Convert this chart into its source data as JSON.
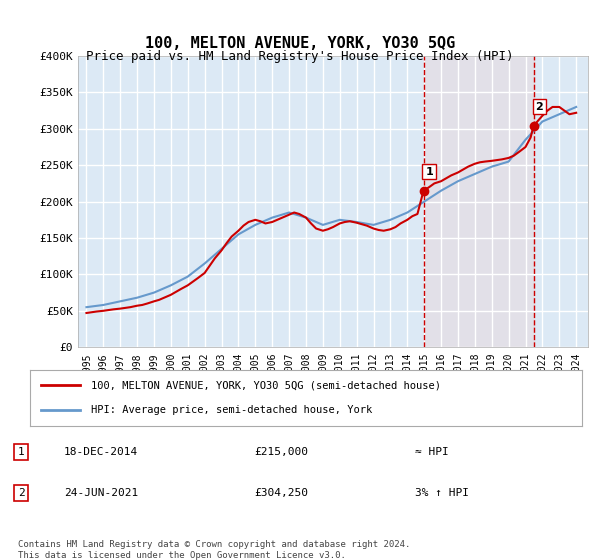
{
  "title": "100, MELTON AVENUE, YORK, YO30 5QG",
  "subtitle": "Price paid vs. HM Land Registry's House Price Index (HPI)",
  "footnote": "Contains HM Land Registry data © Crown copyright and database right 2024.\nThis data is licensed under the Open Government Licence v3.0.",
  "legend_line1": "100, MELTON AVENUE, YORK, YO30 5QG (semi-detached house)",
  "legend_line2": "HPI: Average price, semi-detached house, York",
  "sale1_label": "1",
  "sale1_date": "18-DEC-2014",
  "sale1_price": "£215,000",
  "sale1_hpi": "≈ HPI",
  "sale2_label": "2",
  "sale2_date": "24-JUN-2021",
  "sale2_price": "£304,250",
  "sale2_hpi": "3% ↑ HPI",
  "ylim": [
    0,
    400000
  ],
  "yticks": [
    0,
    50000,
    100000,
    150000,
    200000,
    250000,
    300000,
    350000,
    400000
  ],
  "ytick_labels": [
    "£0",
    "£50K",
    "£100K",
    "£150K",
    "£200K",
    "£250K",
    "£300K",
    "£350K",
    "£400K"
  ],
  "background_color": "#ffffff",
  "plot_bg_color": "#dce9f5",
  "grid_color": "#ffffff",
  "red_color": "#cc0000",
  "blue_color": "#6699cc",
  "sale1_x": 2014.96,
  "sale1_y": 215000,
  "sale2_x": 2021.48,
  "sale2_y": 304250,
  "hpi_years": [
    1995,
    1996,
    1997,
    1998,
    1999,
    2000,
    2001,
    2002,
    2003,
    2004,
    2005,
    2006,
    2007,
    2008,
    2009,
    2010,
    2011,
    2012,
    2013,
    2014,
    2015,
    2016,
    2017,
    2018,
    2019,
    2020,
    2021,
    2022,
    2023,
    2024
  ],
  "hpi_values": [
    55000,
    58000,
    63000,
    68000,
    75000,
    85000,
    97000,
    115000,
    135000,
    155000,
    168000,
    178000,
    185000,
    178000,
    168000,
    175000,
    172000,
    168000,
    175000,
    185000,
    200000,
    215000,
    228000,
    238000,
    248000,
    255000,
    285000,
    310000,
    320000,
    330000
  ],
  "price_years": [
    1995.0,
    1995.3,
    1995.6,
    1996.0,
    1996.3,
    1996.6,
    1997.0,
    1997.3,
    1997.6,
    1998.0,
    1998.3,
    1998.6,
    1999.0,
    1999.3,
    1999.6,
    2000.0,
    2000.3,
    2000.6,
    2001.0,
    2001.3,
    2001.6,
    2002.0,
    2002.3,
    2002.6,
    2003.0,
    2003.3,
    2003.6,
    2004.0,
    2004.3,
    2004.6,
    2005.0,
    2005.3,
    2005.6,
    2006.0,
    2006.3,
    2006.6,
    2007.0,
    2007.3,
    2007.6,
    2008.0,
    2008.3,
    2008.6,
    2009.0,
    2009.3,
    2009.6,
    2010.0,
    2010.3,
    2010.6,
    2011.0,
    2011.3,
    2011.6,
    2012.0,
    2012.3,
    2012.6,
    2013.0,
    2013.3,
    2013.6,
    2014.0,
    2014.3,
    2014.6,
    2014.96,
    2015.3,
    2015.6,
    2016.0,
    2016.3,
    2016.6,
    2017.0,
    2017.3,
    2017.6,
    2018.0,
    2018.3,
    2018.6,
    2019.0,
    2019.3,
    2019.6,
    2020.0,
    2020.3,
    2020.6,
    2021.0,
    2021.3,
    2021.48,
    2021.7,
    2022.0,
    2022.3,
    2022.6,
    2023.0,
    2023.3,
    2023.6,
    2024.0
  ],
  "price_values": [
    47000,
    48000,
    49000,
    50000,
    51000,
    52000,
    53000,
    54000,
    55000,
    57000,
    58000,
    60000,
    63000,
    65000,
    68000,
    72000,
    76000,
    80000,
    85000,
    90000,
    95000,
    102000,
    112000,
    122000,
    133000,
    143000,
    152000,
    160000,
    167000,
    172000,
    175000,
    173000,
    170000,
    172000,
    175000,
    178000,
    182000,
    185000,
    183000,
    178000,
    170000,
    163000,
    160000,
    162000,
    165000,
    170000,
    172000,
    173000,
    171000,
    169000,
    167000,
    163000,
    161000,
    160000,
    162000,
    165000,
    170000,
    175000,
    180000,
    183000,
    215000,
    220000,
    225000,
    228000,
    232000,
    236000,
    240000,
    244000,
    248000,
    252000,
    254000,
    255000,
    256000,
    257000,
    258000,
    260000,
    263000,
    268000,
    275000,
    288000,
    304250,
    310000,
    318000,
    325000,
    330000,
    330000,
    325000,
    320000,
    322000
  ],
  "xtick_years": [
    "1995",
    "1996",
    "1997",
    "1998",
    "1999",
    "2000",
    "2001",
    "2002",
    "2003",
    "2004",
    "2005",
    "2006",
    "2007",
    "2008",
    "2009",
    "2010",
    "2011",
    "2012",
    "2013",
    "2014",
    "2015",
    "2016",
    "2017",
    "2018",
    "2019",
    "2020",
    "2021",
    "2022",
    "2023",
    "2024"
  ],
  "xtick_positions": [
    1995,
    1996,
    1997,
    1998,
    1999,
    2000,
    2001,
    2002,
    2003,
    2004,
    2005,
    2006,
    2007,
    2008,
    2009,
    2010,
    2011,
    2012,
    2013,
    2014,
    2015,
    2016,
    2017,
    2018,
    2019,
    2020,
    2021,
    2022,
    2023,
    2024
  ],
  "shaded_x1": 2014.96,
  "shaded_x2": 2021.48
}
